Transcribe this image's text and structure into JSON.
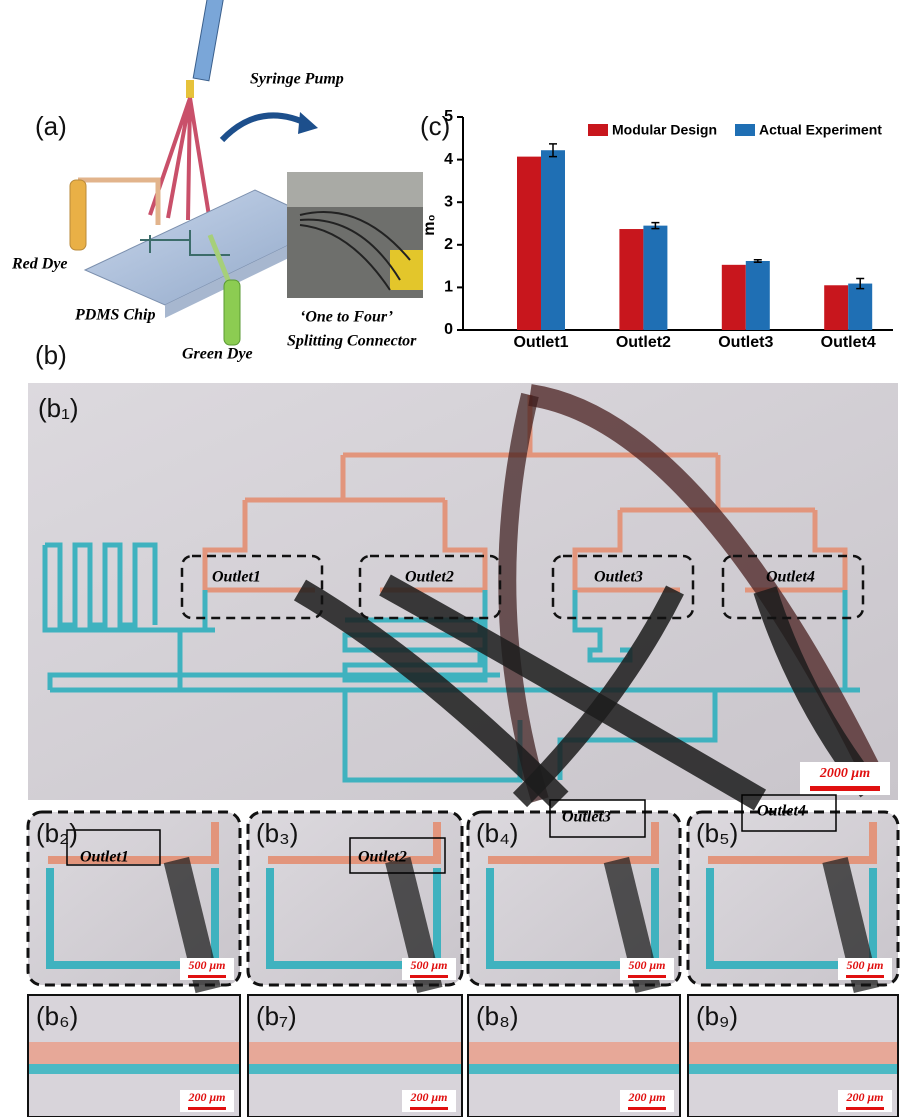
{
  "chart_data": {
    "type": "bar",
    "panel_label": "(c)",
    "categories": [
      "Outlet1",
      "Outlet2",
      "Outlet3",
      "Outlet4"
    ],
    "series": [
      {
        "name": "Modular Design",
        "color": "#c8161d",
        "values": [
          4.07,
          2.37,
          1.53,
          1.05
        ]
      },
      {
        "name": "Actual Experiment",
        "color": "#1f6fb4",
        "values": [
          4.22,
          2.45,
          1.62,
          1.09
        ],
        "errors": [
          0.15,
          0.07,
          0.03,
          0.12
        ]
      }
    ],
    "ylim": [
      0,
      5
    ],
    "yticks": [
      0,
      1,
      2,
      3,
      4,
      5
    ],
    "ylabel": "m₀"
  },
  "panel_a": {
    "label": "(a)",
    "syringe": "Syringe Pump",
    "red_dye": "Red Dye",
    "chip": "PDMS Chip",
    "green_dye": "Green Dye",
    "connector": [
      "‘One to Four’",
      "Splitting Connector"
    ]
  },
  "panel_b": {
    "label": "(b)",
    "overview": {
      "label": "(b₁)",
      "outlets": [
        "Outlet1",
        "Outlet2",
        "Outlet3",
        "Outlet4"
      ],
      "scale": "2000 μm"
    },
    "zooms": [
      {
        "label": "(b₂)",
        "outlet": "Outlet1",
        "scale": "500 μm"
      },
      {
        "label": "(b₃)",
        "outlet": "Outlet2",
        "scale": "500 μm"
      },
      {
        "label": "(b₄)",
        "outlet": "Outlet3",
        "scale": "500 μm"
      },
      {
        "label": "(b₅)",
        "outlet": "Outlet4",
        "scale": "500 μm"
      }
    ],
    "details": [
      {
        "label": "(b₆)",
        "scale": "200 μm"
      },
      {
        "label": "(b₇)",
        "scale": "200 μm"
      },
      {
        "label": "(b₈)",
        "scale": "200 μm"
      },
      {
        "label": "(b₉)",
        "scale": "200 μm"
      }
    ]
  }
}
